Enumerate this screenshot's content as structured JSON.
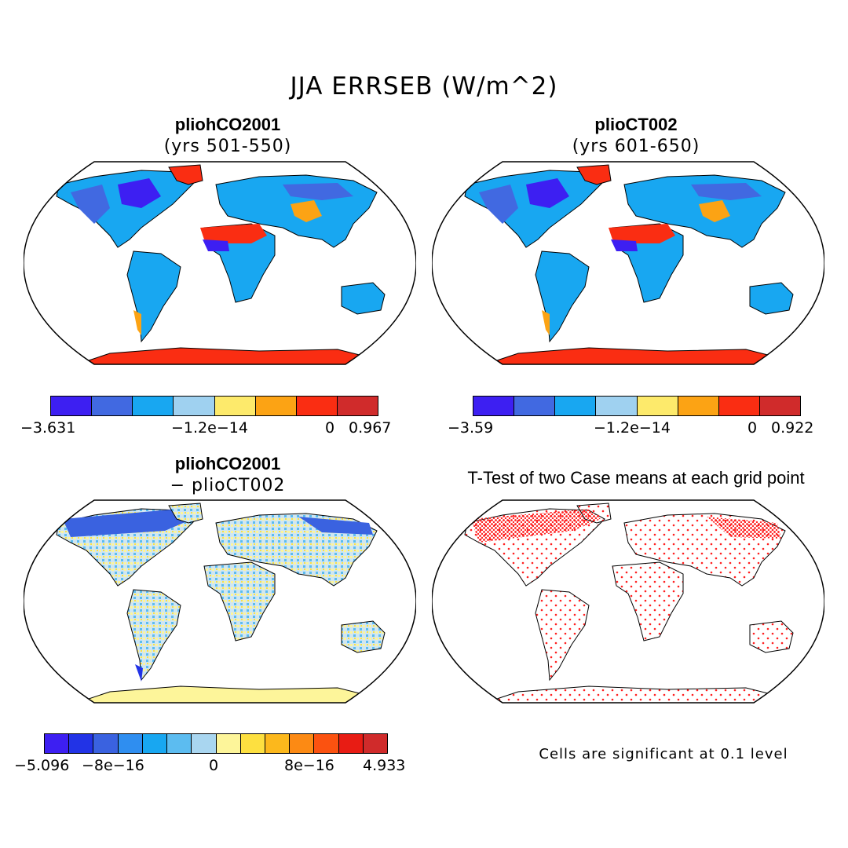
{
  "title": "JJA ERRSEB (W/m^2)",
  "panels": [
    {
      "id": "top-left",
      "title": "pliohCO2001",
      "subtitle": "(yrs 501-550)"
    },
    {
      "id": "top-right",
      "title": "plioCT002",
      "subtitle": "(yrs 601-650)"
    },
    {
      "id": "bottom-left",
      "title": "pliohCO2001",
      "subtitle": "− plioCT002"
    },
    {
      "id": "bottom-right",
      "title": "T-Test of two Case means at each grid point",
      "subtitle": ""
    }
  ],
  "colorbars": {
    "top_left": {
      "colors": [
        "#3d1ff2",
        "#4169e1",
        "#18a7f1",
        "#9fd1f0",
        "#fdea6b",
        "#fca314",
        "#fa2d12",
        "#d02b2b"
      ],
      "labels": [
        "−3.631",
        "−1.2e−14",
        "0",
        "0.967"
      ]
    },
    "top_right": {
      "colors": [
        "#3d1ff2",
        "#4169e1",
        "#18a7f1",
        "#9fd1f0",
        "#fdea6b",
        "#fca314",
        "#fa2d12",
        "#d02b2b"
      ],
      "labels": [
        "−3.59",
        "−1.2e−14",
        "0",
        "0.922"
      ]
    },
    "bottom_left": {
      "colors": [
        "#3d1ff2",
        "#2233e6",
        "#3a62e0",
        "#2f8ef0",
        "#18a7f1",
        "#5cbcf0",
        "#a9d6f0",
        "#fdf59a",
        "#fde040",
        "#fcb81c",
        "#fc8a14",
        "#fb5210",
        "#e81c14",
        "#d02b2b"
      ],
      "labels": [
        "−5.096",
        "−8e−16",
        "0",
        "8e−16",
        "4.933"
      ]
    }
  },
  "significance_note": "Cells are significant at 0.1 level",
  "colors": {
    "ocean": "#ffffff",
    "land_blue": "#18a7f1",
    "desert_red": "#fa2d12",
    "antarctica_red": "#fa2d12",
    "significance_dot": "#ff2020",
    "anomaly_land": "#cfe6f2"
  }
}
